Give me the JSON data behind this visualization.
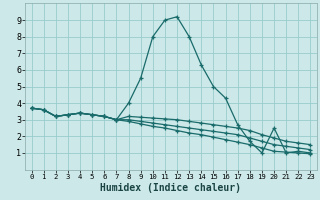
{
  "xlabel": "Humidex (Indice chaleur)",
  "bg_color": "#cce8e8",
  "grid_color": "#99cccc",
  "line_color": "#1a6b6b",
  "xlim": [
    -0.5,
    23.5
  ],
  "ylim": [
    0,
    10
  ],
  "xticks": [
    0,
    1,
    2,
    3,
    4,
    5,
    6,
    7,
    8,
    9,
    10,
    11,
    12,
    13,
    14,
    15,
    16,
    17,
    18,
    19,
    20,
    21,
    22,
    23
  ],
  "yticks": [
    1,
    2,
    3,
    4,
    5,
    6,
    7,
    8,
    9
  ],
  "series": [
    [
      3.7,
      3.6,
      3.2,
      3.3,
      3.4,
      3.3,
      3.2,
      3.0,
      4.0,
      5.5,
      8.0,
      9.0,
      9.2,
      8.0,
      6.3,
      5.0,
      4.3,
      2.7,
      1.7,
      1.0,
      2.5,
      1.0,
      1.1,
      1.0
    ],
    [
      3.7,
      3.6,
      3.2,
      3.3,
      3.4,
      3.3,
      3.2,
      3.0,
      3.2,
      3.15,
      3.1,
      3.05,
      3.0,
      2.9,
      2.8,
      2.7,
      2.6,
      2.5,
      2.35,
      2.1,
      1.9,
      1.7,
      1.6,
      1.5
    ],
    [
      3.7,
      3.6,
      3.2,
      3.3,
      3.4,
      3.3,
      3.2,
      3.0,
      3.0,
      2.9,
      2.8,
      2.7,
      2.6,
      2.5,
      2.4,
      2.3,
      2.2,
      2.1,
      1.9,
      1.7,
      1.5,
      1.4,
      1.3,
      1.2
    ],
    [
      3.7,
      3.6,
      3.2,
      3.3,
      3.4,
      3.3,
      3.2,
      3.0,
      2.9,
      2.75,
      2.6,
      2.5,
      2.35,
      2.2,
      2.1,
      1.95,
      1.8,
      1.65,
      1.5,
      1.3,
      1.1,
      1.05,
      1.0,
      0.95
    ]
  ]
}
